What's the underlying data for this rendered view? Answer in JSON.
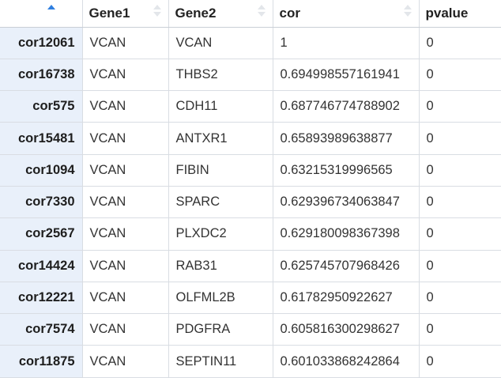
{
  "table": {
    "columns": [
      {
        "key": "rowname",
        "label": ""
      },
      {
        "key": "gene1",
        "label": "Gene1"
      },
      {
        "key": "gene2",
        "label": "Gene2"
      },
      {
        "key": "cor",
        "label": "cor"
      },
      {
        "key": "pvalue",
        "label": "pvalue"
      }
    ],
    "sorted_column": "rowname",
    "sort_direction": "ascending",
    "colors": {
      "rowname_background": "#e9f0fa",
      "sort_active": "#2f7fe0",
      "sort_inactive": "#e3e6ea",
      "grid_line": "#d9dde3"
    },
    "rows": [
      {
        "rowname": "cor12061",
        "gene1": "VCAN",
        "gene2": "VCAN",
        "cor": "1",
        "pvalue": "0"
      },
      {
        "rowname": "cor16738",
        "gene1": "VCAN",
        "gene2": "THBS2",
        "cor": "0.694998557161941",
        "pvalue": "0"
      },
      {
        "rowname": "cor575",
        "gene1": "VCAN",
        "gene2": "CDH11",
        "cor": "0.687746774788902",
        "pvalue": "0"
      },
      {
        "rowname": "cor15481",
        "gene1": "VCAN",
        "gene2": "ANTXR1",
        "cor": "0.65893989638877",
        "pvalue": "0"
      },
      {
        "rowname": "cor1094",
        "gene1": "VCAN",
        "gene2": "FIBIN",
        "cor": "0.63215319996565",
        "pvalue": "0"
      },
      {
        "rowname": "cor7330",
        "gene1": "VCAN",
        "gene2": "SPARC",
        "cor": "0.629396734063847",
        "pvalue": "0"
      },
      {
        "rowname": "cor2567",
        "gene1": "VCAN",
        "gene2": "PLXDC2",
        "cor": "0.629180098367398",
        "pvalue": "0"
      },
      {
        "rowname": "cor14424",
        "gene1": "VCAN",
        "gene2": "RAB31",
        "cor": "0.625745707968426",
        "pvalue": "0"
      },
      {
        "rowname": "cor12221",
        "gene1": "VCAN",
        "gene2": "OLFML2B",
        "cor": "0.61782950922627",
        "pvalue": "0"
      },
      {
        "rowname": "cor7574",
        "gene1": "VCAN",
        "gene2": "PDGFRA",
        "cor": "0.605816300298627",
        "pvalue": "0"
      },
      {
        "rowname": "cor11875",
        "gene1": "VCAN",
        "gene2": "SEPTIN11",
        "cor": "0.601033868242864",
        "pvalue": "0"
      }
    ]
  }
}
